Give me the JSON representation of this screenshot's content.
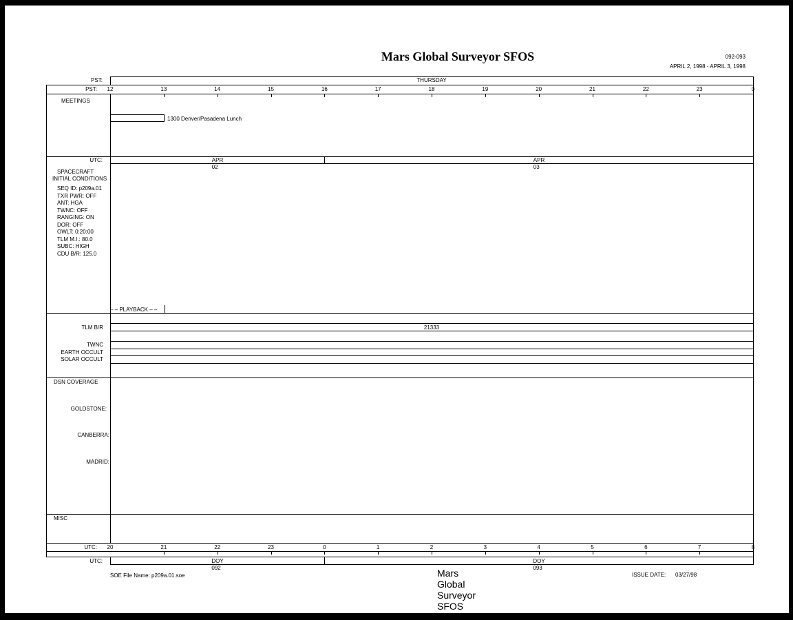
{
  "header": {
    "title": "Mars Global Surveyor SFOS",
    "doy_range": "092-093",
    "date_range": "APRIL 2, 1998 - APRIL 3, 1998"
  },
  "pst_day": {
    "label": "PST:",
    "day": "THURSDAY"
  },
  "pst_hours": {
    "label": "PST:",
    "hours": [
      "12",
      "13",
      "14",
      "15",
      "16",
      "17",
      "18",
      "19",
      "20",
      "21",
      "22",
      "23",
      "0"
    ]
  },
  "meetings": {
    "label": "MEETINGS",
    "event": "1300  Denver/Pasadena Lunch"
  },
  "utc_dates": {
    "label": "UTC:",
    "dates": [
      "APR 02",
      "APR 03"
    ]
  },
  "spacecraft": {
    "title1": "SPACECRAFT",
    "title2": "INITIAL CONDITIONS",
    "conditions": [
      "SEQ ID: p209a.01",
      "TXR PWR: OFF",
      "ANT: HGA",
      "TWNC: OFF",
      "RANGING: ON",
      "DOR: OFF",
      "OWLT: 0:20:00",
      "TLM M.I.: 80.0",
      "SUBC: HIGH",
      "CDU B/R: 125.0"
    ],
    "playback": "PLAYBACK"
  },
  "telemetry": {
    "tlm_label": "TLM B/R",
    "tlm_value": "21333",
    "twnc": "TWNC",
    "earth": "EARTH OCCULT",
    "solar": "SOLAR OCCULT"
  },
  "dsn": {
    "label": "DSN COVERAGE",
    "stations": [
      "GOLDSTONE:",
      "CANBERRA:",
      "MADRID:"
    ]
  },
  "misc": {
    "label": "MISC"
  },
  "utc_hours": {
    "label": "UTC:",
    "hours": [
      "20",
      "21",
      "22",
      "23",
      "0",
      "1",
      "2",
      "3",
      "4",
      "5",
      "6",
      "7",
      "8"
    ]
  },
  "doy": {
    "label": "UTC:",
    "days": [
      "DOY 092",
      "DOY 093"
    ]
  },
  "footer": {
    "file": "SOE File Name: p209a.01.soe",
    "title": "Mars Global Surveyor SFOS",
    "issue_label": "ISSUE DATE:",
    "issue_date": "03/27/98"
  }
}
